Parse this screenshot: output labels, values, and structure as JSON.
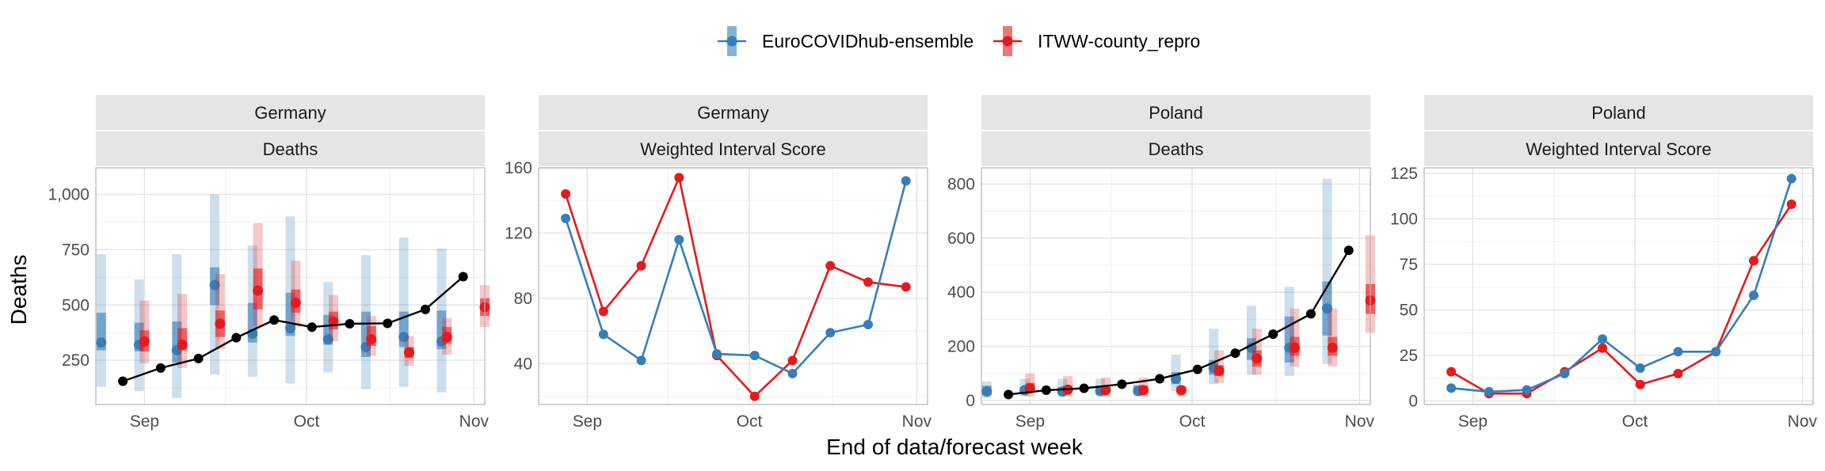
{
  "chart_data": {
    "type": "line",
    "ylabel": "Deaths",
    "xlabel": "End of data/forecast week",
    "colors": {
      "ensemble": "#377eb8",
      "county": "#e41a1c",
      "observed": "#000000"
    },
    "legend": {
      "placement": "top",
      "entries": [
        {
          "key": "ensemble",
          "label": "EuroCOVIDhub-ensemble"
        },
        {
          "key": "county",
          "label": "ITWW-county_repro"
        }
      ]
    },
    "x_tick_labels": [
      "Sep",
      "Oct",
      "Nov"
    ],
    "x_tick_dates": [
      "2021-09-01",
      "2021-10-01",
      "2021-11-01"
    ],
    "x_range": [
      "2021-08-23",
      "2021-11-03"
    ],
    "grid": true,
    "panels": [
      {
        "country": "Germany",
        "metric": "Deaths",
        "kind": "forecast",
        "ylim": [
          50,
          1120
        ],
        "y_ticks": [
          250,
          500,
          750,
          1000
        ],
        "y_tick_labels": [
          "250",
          "500",
          "750",
          "1,000"
        ],
        "observed": {
          "dates": [
            "2021-08-28",
            "2021-09-04",
            "2021-09-11",
            "2021-09-18",
            "2021-09-25",
            "2021-10-02",
            "2021-10-09",
            "2021-10-16",
            "2021-10-23",
            "2021-10-30"
          ],
          "values": [
            155,
            215,
            258,
            352,
            432,
            400,
            415,
            417,
            480,
            628
          ]
        },
        "forecasts": [
          {
            "model": "ensemble",
            "dates": [
              "2021-08-28",
              "2021-09-04",
              "2021-09-11",
              "2021-09-18",
              "2021-09-25",
              "2021-10-02",
              "2021-10-09",
              "2021-10-16",
              "2021-10-23",
              "2021-10-30"
            ],
            "median": [
              330,
              320,
              295,
              590,
              370,
              395,
              345,
              310,
              355,
              335
            ],
            "lower50": [
              295,
              290,
              240,
              500,
              330,
              360,
              320,
              265,
              310,
              300
            ],
            "upper50": [
              465,
              420,
              425,
              670,
              510,
              555,
              455,
              470,
              470,
              475
            ],
            "lower90": [
              130,
              110,
              80,
              185,
              175,
              145,
              195,
              120,
              130,
              105
            ],
            "upper90": [
              730,
              615,
              730,
              1000,
              770,
              900,
              605,
              725,
              805,
              755
            ]
          },
          {
            "model": "county",
            "dates": [
              "2021-08-28",
              "2021-09-04",
              "2021-09-11",
              "2021-09-18",
              "2021-09-25",
              "2021-10-02",
              "2021-10-09",
              "2021-10-16",
              "2021-10-23",
              "2021-10-30"
            ],
            "median": [
              335,
              320,
              415,
              565,
              510,
              425,
              345,
              285,
              355,
              490
            ],
            "lower50": [
              290,
              295,
              355,
              480,
              465,
              390,
              315,
              260,
              325,
              450
            ],
            "upper50": [
              385,
              395,
              475,
              665,
              570,
              470,
              405,
              310,
              400,
              530
            ],
            "lower90": [
              235,
              215,
              300,
              405,
              400,
              335,
              270,
              225,
              275,
              400
            ],
            "upper90": [
              520,
              550,
              640,
              870,
              700,
              545,
              450,
              360,
              440,
              590
            ]
          }
        ]
      },
      {
        "country": "Germany",
        "metric": "Weighted Interval Score",
        "kind": "score",
        "ylim": [
          15,
          160
        ],
        "y_ticks": [
          40,
          80,
          120,
          160
        ],
        "y_tick_labels": [
          "40",
          "80",
          "120",
          "160"
        ],
        "series": [
          {
            "model": "ensemble",
            "dates": [
              "2021-08-28",
              "2021-09-04",
              "2021-09-11",
              "2021-09-18",
              "2021-09-25",
              "2021-10-02",
              "2021-10-09",
              "2021-10-16",
              "2021-10-23",
              "2021-10-30"
            ],
            "values": [
              129,
              58,
              42,
              116,
              46,
              45,
              34,
              59,
              64,
              152
            ]
          },
          {
            "model": "county",
            "dates": [
              "2021-08-28",
              "2021-09-04",
              "2021-09-11",
              "2021-09-18",
              "2021-09-25",
              "2021-10-02",
              "2021-10-09",
              "2021-10-16",
              "2021-10-23",
              "2021-10-30"
            ],
            "values": [
              144,
              72,
              100,
              154,
              45,
              20,
              42,
              100,
              90,
              87
            ]
          }
        ]
      },
      {
        "country": "Poland",
        "metric": "Deaths",
        "kind": "forecast",
        "ylim": [
          -15,
          860
        ],
        "y_ticks": [
          0,
          200,
          400,
          600,
          800
        ],
        "y_tick_labels": [
          "0",
          "200",
          "400",
          "600",
          "800"
        ],
        "observed": {
          "dates": [
            "2021-08-28",
            "2021-09-04",
            "2021-09-11",
            "2021-09-18",
            "2021-09-25",
            "2021-10-02",
            "2021-10-09",
            "2021-10-16",
            "2021-10-23",
            "2021-10-30"
          ],
          "values": [
            22,
            38,
            45,
            60,
            80,
            115,
            175,
            245,
            320,
            555
          ]
        },
        "forecasts": [
          {
            "model": "ensemble",
            "dates": [
              "2021-08-28",
              "2021-09-04",
              "2021-09-11",
              "2021-09-18",
              "2021-09-25",
              "2021-10-02",
              "2021-10-09",
              "2021-10-16",
              "2021-10-23",
              "2021-10-30"
            ],
            "median": [
              33,
              38,
              33,
              35,
              35,
              80,
              120,
              195,
              195,
              340
            ],
            "lower50": [
              20,
              30,
              25,
              25,
              25,
              60,
              95,
              150,
              140,
              240
            ],
            "upper50": [
              55,
              50,
              50,
              55,
              55,
              105,
              150,
              230,
              310,
              440
            ],
            "lower90": [
              10,
              15,
              15,
              15,
              15,
              35,
              60,
              95,
              90,
              135
            ],
            "upper90": [
              70,
              80,
              80,
              80,
              60,
              170,
              265,
              350,
              420,
              820
            ]
          },
          {
            "model": "county",
            "dates": [
              "2021-08-28",
              "2021-09-04",
              "2021-09-11",
              "2021-09-18",
              "2021-09-25",
              "2021-10-02",
              "2021-10-09",
              "2021-10-16",
              "2021-10-23",
              "2021-10-30"
            ],
            "median": [
              45,
              40,
              38,
              38,
              38,
              110,
              155,
              195,
              195,
              370
            ],
            "lower50": [
              30,
              30,
              30,
              30,
              30,
              90,
              125,
              165,
              165,
              320
            ],
            "upper50": [
              65,
              55,
              55,
              55,
              50,
              130,
              185,
              235,
              235,
              430
            ],
            "lower90": [
              15,
              15,
              15,
              15,
              15,
              65,
              95,
              125,
              125,
              250
            ],
            "upper90": [
              100,
              90,
              85,
              85,
              55,
              185,
              265,
              340,
              340,
              610
            ]
          }
        ]
      },
      {
        "country": "Poland",
        "metric": "Weighted Interval Score",
        "kind": "score",
        "ylim": [
          -2,
          128
        ],
        "y_ticks": [
          0,
          25,
          50,
          75,
          100,
          125
        ],
        "y_tick_labels": [
          "0",
          "25",
          "50",
          "75",
          "100",
          "125"
        ],
        "series": [
          {
            "model": "ensemble",
            "dates": [
              "2021-08-28",
              "2021-09-04",
              "2021-09-11",
              "2021-09-18",
              "2021-09-25",
              "2021-10-02",
              "2021-10-09",
              "2021-10-16",
              "2021-10-23",
              "2021-10-30"
            ],
            "values": [
              7,
              5,
              6,
              15,
              34,
              18,
              27,
              27,
              58,
              122
            ]
          },
          {
            "model": "county",
            "dates": [
              "2021-08-28",
              "2021-09-04",
              "2021-09-11",
              "2021-09-18",
              "2021-09-25",
              "2021-10-02",
              "2021-10-09",
              "2021-10-16",
              "2021-10-23",
              "2021-10-30"
            ],
            "values": [
              16,
              4,
              4,
              16,
              29,
              9,
              15,
              27,
              77,
              108
            ]
          }
        ]
      }
    ]
  }
}
